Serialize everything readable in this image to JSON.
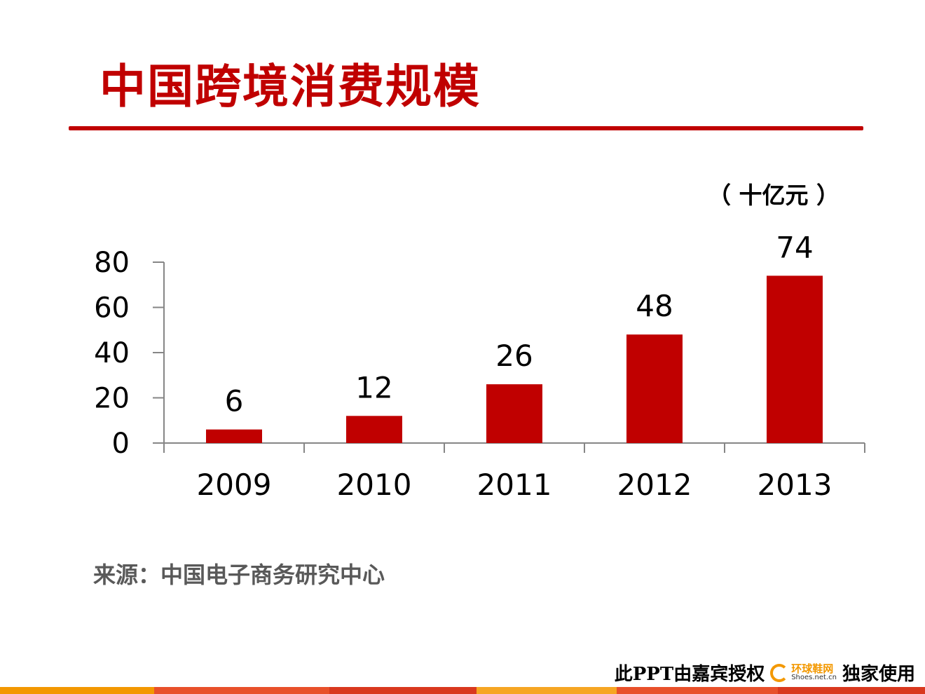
{
  "slide": {
    "title": "中国跨境消费规模",
    "unit_label": "（ 十亿元 ）",
    "source": "来源：中国电子商务研究中心",
    "watermark": {
      "text_left": "此PPT由嘉宾授权",
      "logo_cn": "环球鞋网",
      "logo_en": "Shoes.net.cn",
      "text_right": "独家使用"
    }
  },
  "colors": {
    "accent": "#c00000",
    "source_text": "#595959",
    "axis": "#868686",
    "band": [
      "#f39800",
      "#e8502a",
      "#d9381e",
      "#f6a623",
      "#e8502a",
      "#d9381e"
    ]
  },
  "chart_data": {
    "type": "bar",
    "title": "中国跨境消费规模",
    "unit": "十亿元",
    "categories": [
      "2009",
      "2010",
      "2011",
      "2012",
      "2013"
    ],
    "values": [
      6,
      12,
      26,
      48,
      74
    ],
    "data_labels": [
      "6",
      "12",
      "26",
      "48",
      "74"
    ],
    "ylim": [
      0,
      80
    ],
    "yticks": [
      0,
      20,
      40,
      60,
      80
    ],
    "xlabel": "",
    "ylabel": "",
    "grid": false,
    "legend": "none"
  }
}
